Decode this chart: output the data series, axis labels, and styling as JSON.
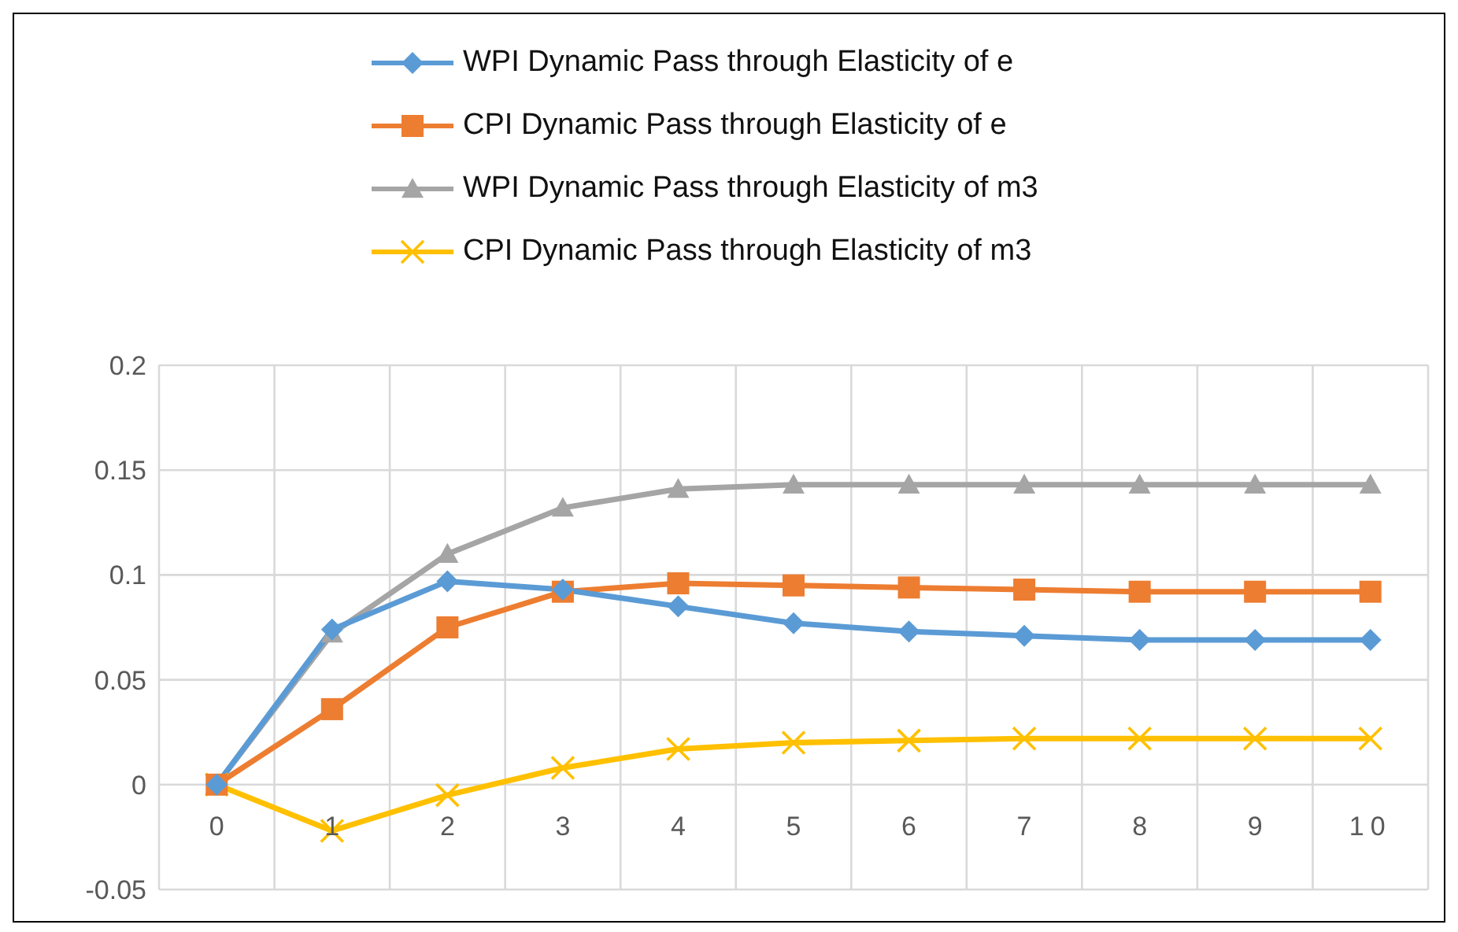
{
  "chart_data": {
    "type": "line",
    "categories": [
      "0",
      "1",
      "2",
      "3",
      "4",
      "5",
      "6",
      "7",
      "8",
      "9",
      "10"
    ],
    "series": [
      {
        "name": "WPI Dynamic Pass through Elasticity of e",
        "color": "#5b9bd5",
        "marker": "diamond",
        "values": [
          0,
          0.074,
          0.097,
          0.093,
          0.085,
          0.077,
          0.073,
          0.071,
          0.069,
          0.069,
          0.069
        ]
      },
      {
        "name": "CPI Dynamic Pass through Elasticity of e",
        "color": "#ed7d31",
        "marker": "square",
        "values": [
          0,
          0.036,
          0.075,
          0.092,
          0.096,
          0.095,
          0.094,
          0.093,
          0.092,
          0.092,
          0.092
        ]
      },
      {
        "name": "WPI Dynamic Pass through Elasticity of m3",
        "color": "#a5a5a5",
        "marker": "triangle",
        "values": [
          0,
          0.072,
          0.11,
          0.132,
          0.141,
          0.143,
          0.143,
          0.143,
          0.143,
          0.143,
          0.143
        ]
      },
      {
        "name": "CPI Dynamic Pass through Elasticity of m3",
        "color": "#ffc000",
        "marker": "cross",
        "values": [
          0,
          -0.022,
          -0.005,
          0.008,
          0.017,
          0.02,
          0.021,
          0.022,
          0.022,
          0.022,
          0.022
        ]
      }
    ],
    "ylim": [
      -0.05,
      0.2
    ],
    "yticks": [
      -0.05,
      0,
      0.05,
      0.1,
      0.15,
      0.2
    ],
    "grid": true,
    "legend": "top",
    "line_style": "solid"
  }
}
